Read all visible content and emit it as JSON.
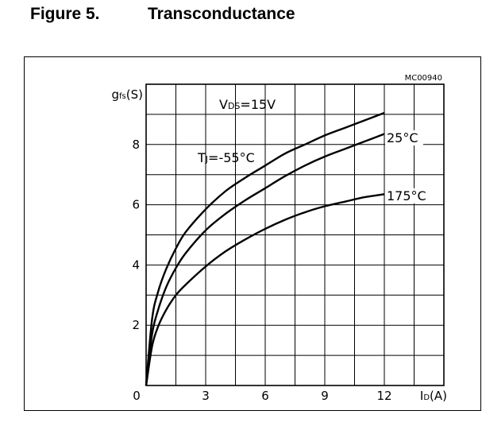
{
  "figure": {
    "number": "Figure 5.",
    "title": "Transconductance"
  },
  "chart_data": {
    "type": "line",
    "title": "Transconductance",
    "code": "MC00940",
    "condition": "VDS=15V",
    "xlabel": "ID(A)",
    "ylabel": "gfs(S)",
    "xlim": [
      0,
      15
    ],
    "ylim": [
      0,
      10
    ],
    "xticks": [
      0,
      3,
      6,
      9,
      12
    ],
    "yticks": [
      2,
      4,
      6,
      8
    ],
    "grid": true,
    "x_gridlines": [
      0,
      1.5,
      3,
      4.5,
      6,
      7.5,
      9,
      10.5,
      12,
      13.5,
      15
    ],
    "y_gridlines": [
      0,
      1,
      2,
      3,
      4,
      5,
      6,
      7,
      8,
      9,
      10
    ],
    "series": [
      {
        "name": "TJ=-55°C",
        "x": [
          0,
          0.3,
          0.6,
          1,
          1.5,
          2,
          3,
          4,
          5,
          6,
          7,
          8,
          9,
          10,
          11,
          12
        ],
        "values": [
          0,
          2.2,
          3.1,
          3.85,
          4.55,
          5.1,
          5.85,
          6.45,
          6.9,
          7.3,
          7.7,
          8.0,
          8.3,
          8.55,
          8.8,
          9.05
        ]
      },
      {
        "name": "25°C",
        "x": [
          0,
          0.3,
          0.6,
          1,
          1.5,
          2,
          3,
          4,
          5,
          6,
          7,
          8,
          9,
          10,
          11,
          12
        ],
        "values": [
          0,
          1.7,
          2.5,
          3.25,
          3.9,
          4.4,
          5.15,
          5.7,
          6.15,
          6.55,
          6.95,
          7.3,
          7.6,
          7.85,
          8.1,
          8.35
        ]
      },
      {
        "name": "175°C",
        "x": [
          0,
          0.3,
          0.6,
          1,
          1.5,
          2,
          3,
          4,
          5,
          6,
          7,
          8,
          9,
          10,
          11,
          12
        ],
        "values": [
          0,
          1.3,
          1.95,
          2.5,
          3.0,
          3.35,
          3.95,
          4.45,
          4.85,
          5.2,
          5.5,
          5.75,
          5.95,
          6.1,
          6.25,
          6.35
        ]
      }
    ]
  }
}
